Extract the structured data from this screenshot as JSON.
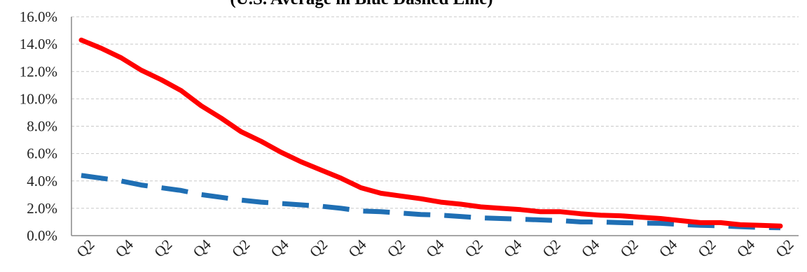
{
  "chart_data": {
    "type": "line",
    "title": "(U.S. Average in Blue Dashed Line)",
    "xlabel": "",
    "ylabel": "",
    "ylim": [
      0,
      16
    ],
    "y_ticks": [
      "0.0%",
      "2.0%",
      "4.0%",
      "6.0%",
      "8.0%",
      "10.0%",
      "12.0%",
      "14.0%",
      "16.0%"
    ],
    "x_tick_labels": [
      "Q2",
      "Q4",
      "Q2",
      "Q4",
      "Q2",
      "Q4",
      "Q2",
      "Q4",
      "Q2",
      "Q4",
      "Q2",
      "Q4",
      "Q2",
      "Q4",
      "Q2",
      "Q4",
      "Q2",
      "Q4",
      "Q2"
    ],
    "grid": true,
    "series": [
      {
        "color": "#ff0000",
        "style": "solid",
        "values": [
          14.3,
          13.7,
          13.0,
          12.1,
          11.4,
          10.6,
          9.5,
          8.6,
          7.6,
          6.9,
          6.1,
          5.4,
          4.8,
          4.2,
          3.5,
          3.1,
          2.9,
          2.7,
          2.45,
          2.3,
          2.1,
          2.0,
          1.9,
          1.75,
          1.75,
          1.6,
          1.5,
          1.45,
          1.35,
          1.25,
          1.1,
          0.95,
          0.95,
          0.8,
          0.75,
          0.7
        ]
      },
      {
        "color": "#1f6fb4",
        "style": "dashed",
        "values": [
          4.4,
          4.2,
          4.0,
          3.7,
          3.5,
          3.3,
          3.0,
          2.8,
          2.6,
          2.45,
          2.35,
          2.25,
          2.15,
          2.0,
          1.8,
          1.75,
          1.65,
          1.55,
          1.5,
          1.4,
          1.3,
          1.25,
          1.2,
          1.15,
          1.1,
          1.0,
          1.0,
          0.95,
          0.92,
          0.9,
          0.82,
          0.75,
          0.72,
          0.65,
          0.6,
          0.58
        ]
      }
    ]
  }
}
